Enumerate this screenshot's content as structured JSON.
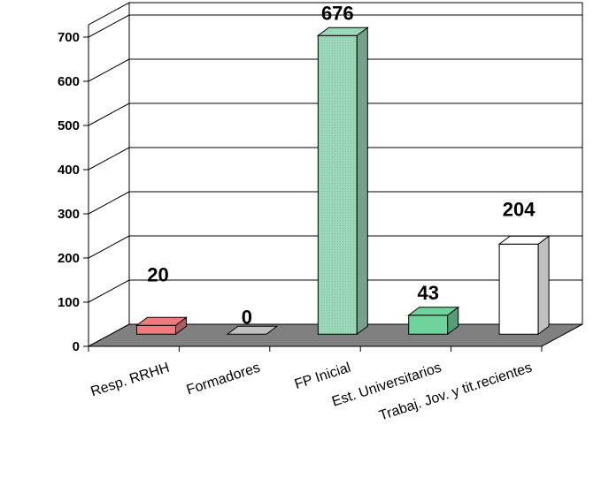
{
  "chart_data": {
    "type": "bar",
    "categories": [
      "Resp. RRHH",
      "Formadores",
      "FP Inicial",
      "Est. Universitarios",
      "Trabaj. Jov. y tit.recientes"
    ],
    "values": [
      20,
      0,
      676,
      43,
      204
    ],
    "ylim": [
      0,
      700
    ],
    "yticks": [
      "0",
      "100",
      "200",
      "300",
      "400",
      "500",
      "600",
      "700"
    ],
    "data_labels": [
      "20",
      "0",
      "676",
      "43",
      "204"
    ],
    "colors": [
      "#ef7b7f",
      "#c0c0c0",
      "#9ad6b8",
      "#6fd39c",
      "#ffffff"
    ],
    "grid": true,
    "style": "3d-column"
  }
}
